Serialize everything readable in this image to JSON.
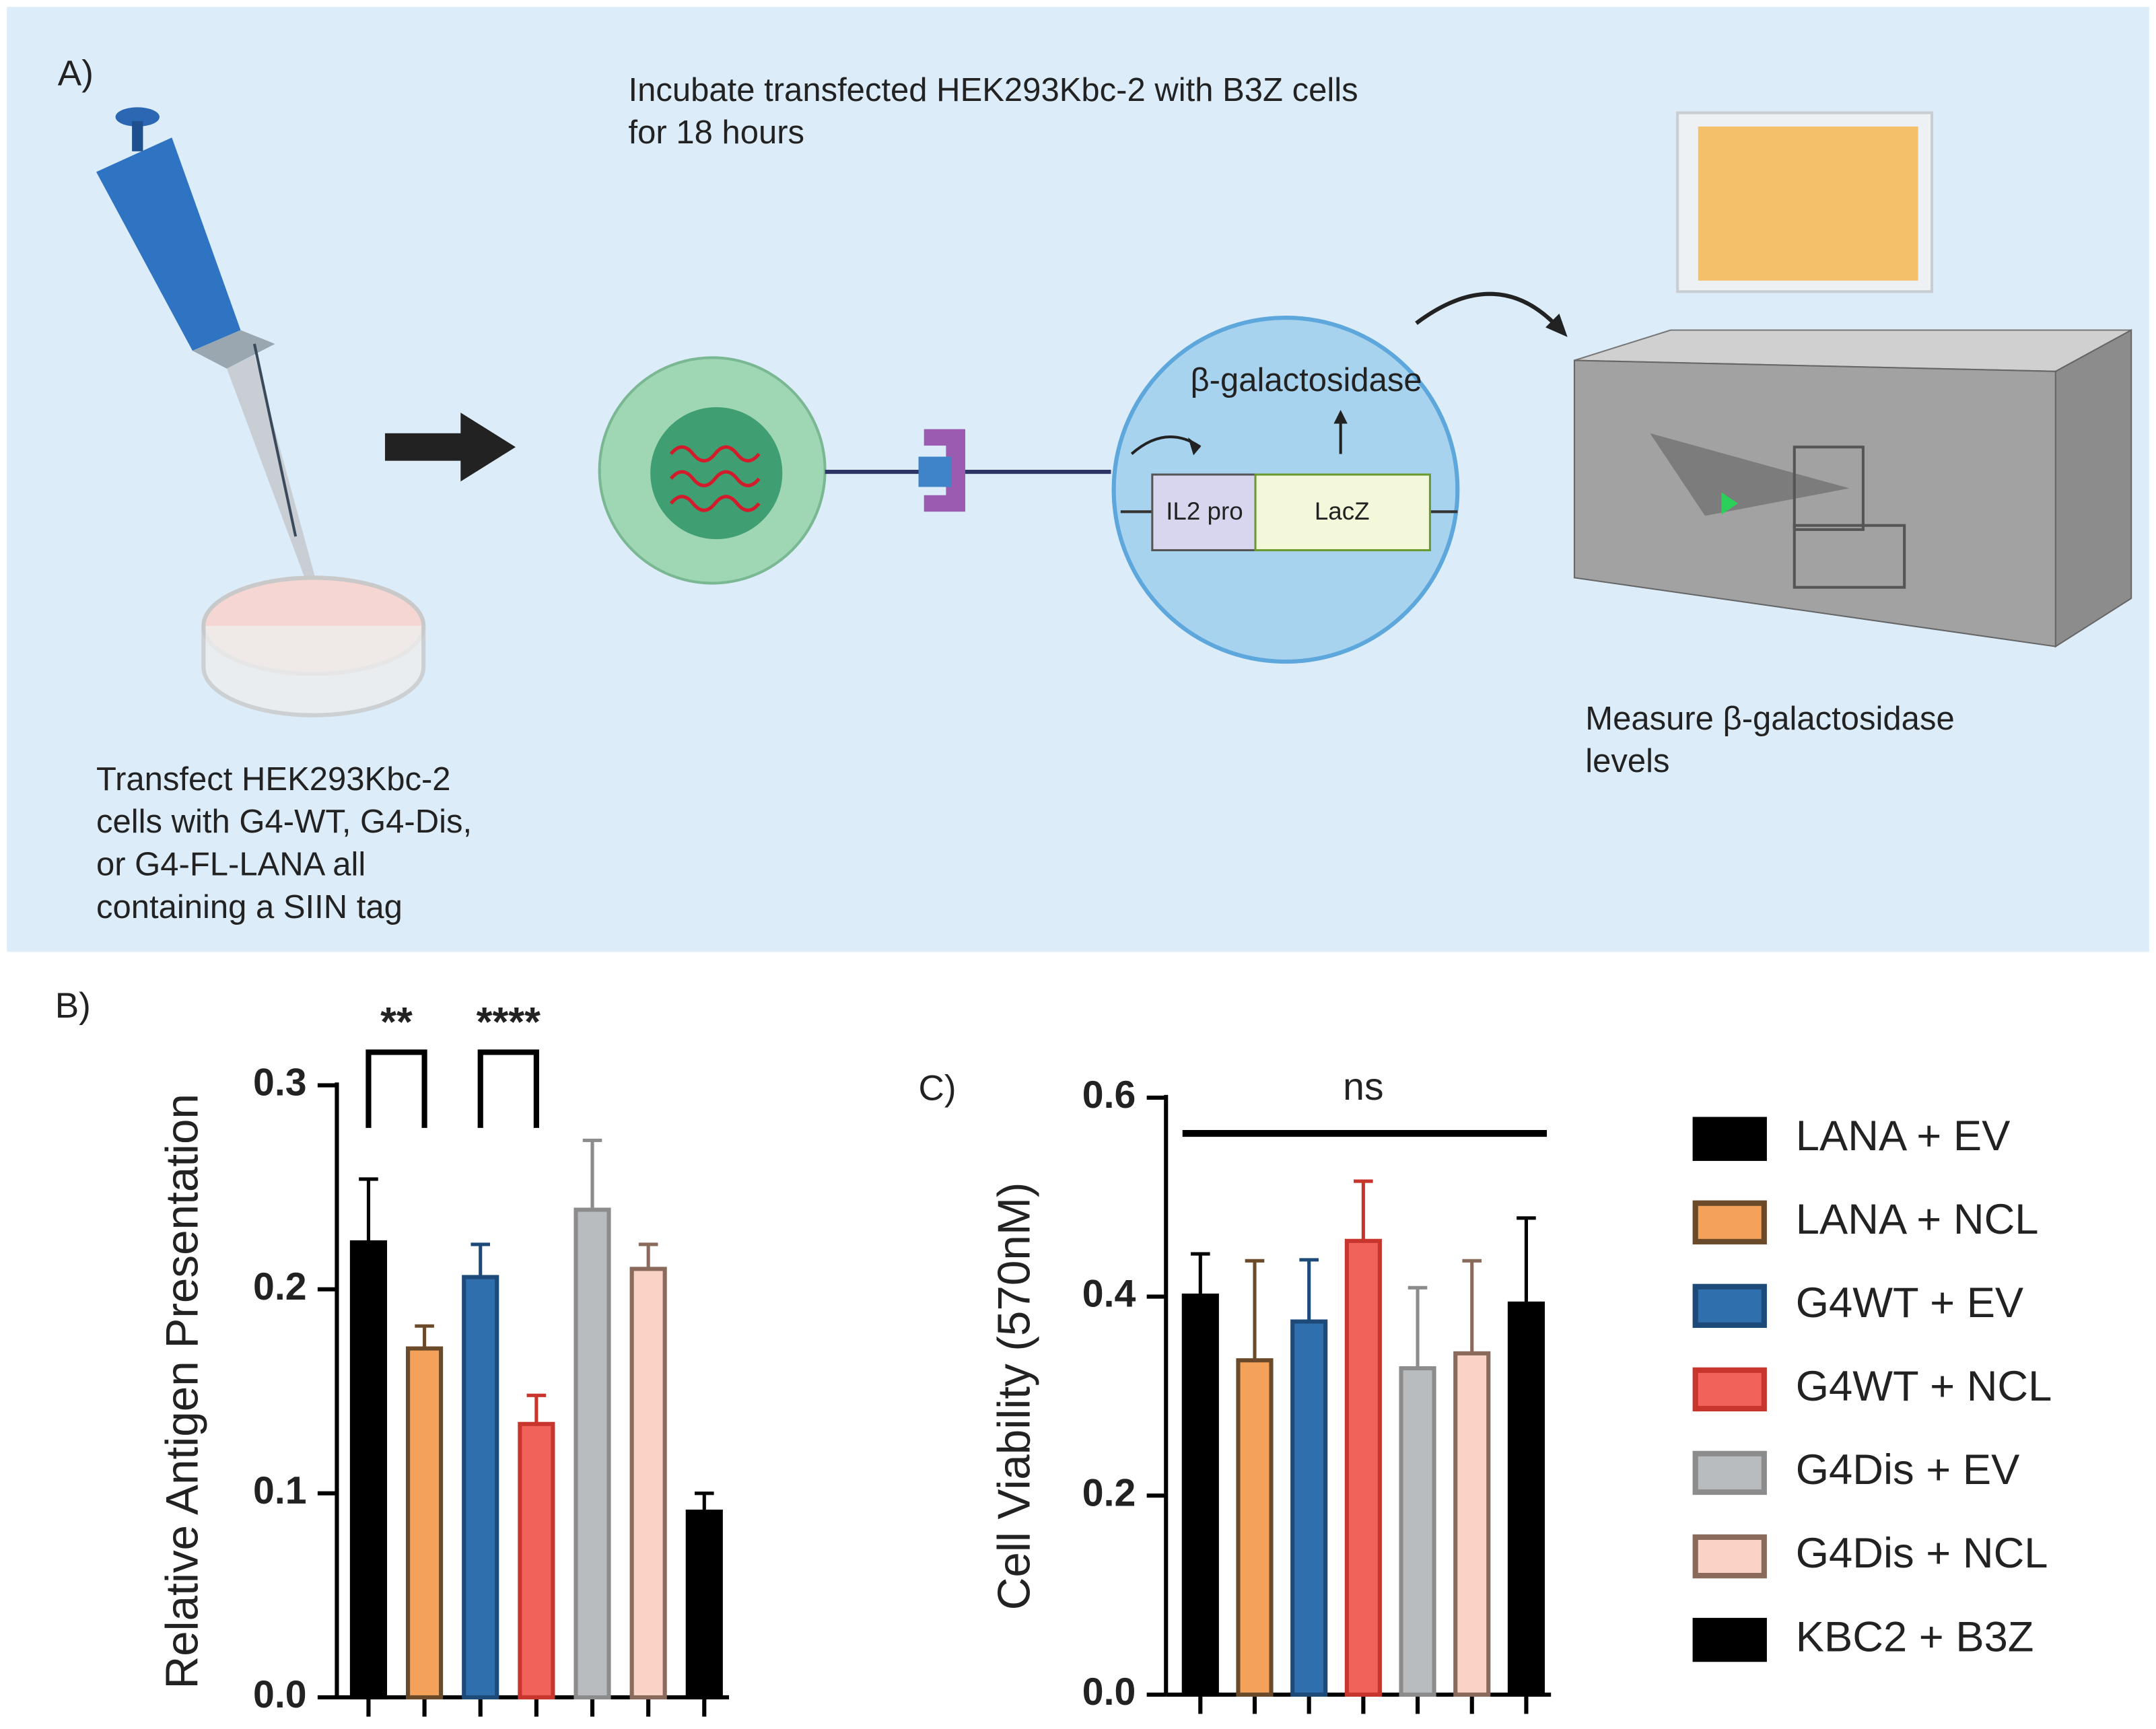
{
  "panel_a": {
    "label": "A)",
    "transfect": [
      "Transfect HEK293Kbc-2",
      "cells with G4-WT, G4-Dis,",
      "or G4-FL-LANA all",
      "containing a SIIN tag"
    ],
    "incubate": [
      "Incubate transfected HEK293Kbc-2 with B3Z cells",
      "for 18 hours"
    ],
    "enzyme": "β-galactosidase",
    "promoter": "IL2 pro",
    "gene": "LacZ",
    "measure": [
      "Measure β-galactosidase",
      "levels"
    ]
  },
  "legend": {
    "names": [
      "LANA + EV",
      "LANA  + NCL",
      "G4WT + EV",
      "G4WT + NCL",
      "G4Dis + EV",
      "G4Dis + NCL",
      "KBC2 + B3Z"
    ],
    "fills": [
      "#000000",
      "#f4a259",
      "#2f6fae",
      "#f0625a",
      "#b9bcbf",
      "#fbd3c6",
      "#000000"
    ],
    "edges": [
      "#000000",
      "#6b4a2a",
      "#1d4a78",
      "#c8352c",
      "#8c8c8c",
      "#8a6a5a",
      "#000000"
    ]
  },
  "chart_data": [
    {
      "type": "bar",
      "panel": "B)",
      "ylabel": "Relative Antigen Presentation",
      "categories": [
        null,
        null,
        null,
        null,
        null,
        null,
        null
      ],
      "values": [
        0.223,
        0.171,
        0.206,
        0.134,
        0.239,
        0.21,
        0.091
      ],
      "errors": [
        0.031,
        0.011,
        0.016,
        0.014,
        0.034,
        0.012,
        0.009
      ],
      "ylim": [
        0,
        0.3
      ],
      "yticks": [
        {
          "value": 0,
          "label": "0.0"
        },
        0.1,
        0.2,
        0.3
      ],
      "annotations": [
        {
          "text": "**",
          "from": 0,
          "to": 1
        },
        {
          "text": "****",
          "from": 2,
          "to": 3
        }
      ]
    },
    {
      "type": "bar",
      "panel": "C)",
      "ylabel": "Cell Viability (570nM)",
      "categories": [
        null,
        null,
        null,
        null,
        null,
        null,
        null
      ],
      "values": [
        0.401,
        0.336,
        0.375,
        0.456,
        0.328,
        0.343,
        0.393
      ],
      "errors": [
        0.042,
        0.1,
        0.062,
        0.06,
        0.081,
        0.093,
        0.086
      ],
      "ylim": [
        0,
        0.6
      ],
      "yticks": [
        {
          "value": 0,
          "label": "0.0"
        },
        0.2,
        0.4,
        0.6
      ],
      "annotations": [
        {
          "text": "ns",
          "from": 0,
          "to": 6
        }
      ]
    }
  ]
}
